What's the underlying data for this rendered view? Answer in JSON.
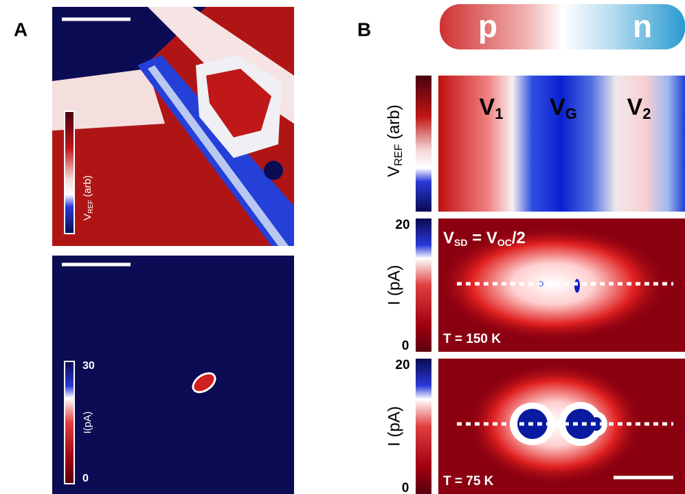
{
  "panel_a": {
    "label": "A",
    "reflection_colorbar": {
      "label": {
        "main": "V",
        "sub": "REF",
        "rest": " (arb)"
      }
    },
    "current_colorbar": {
      "max": "30",
      "min": "0",
      "label": "I(pA)"
    }
  },
  "panel_b": {
    "label": "B",
    "tube": {
      "left": "p",
      "right": "n"
    },
    "reflection": {
      "axis_label": {
        "main": "V",
        "sub": "REF",
        "rest": " (arb)"
      },
      "gates": [
        {
          "main": "V",
          "sub": "1"
        },
        {
          "main": "V",
          "sub": "G"
        },
        {
          "main": "V",
          "sub": "2"
        }
      ]
    },
    "maps": [
      {
        "condition": {
          "a": "V",
          "a_sub": "SD",
          "mid": " = V",
          "b_sub": "OC",
          "end": "/2"
        },
        "temperature": "T = 150 K",
        "axis_label": "I (pA)",
        "max": "20",
        "min": "0"
      },
      {
        "temperature": "T = 75 K",
        "axis_label": "I (pA)",
        "max": "20",
        "min": "0"
      }
    ]
  }
}
